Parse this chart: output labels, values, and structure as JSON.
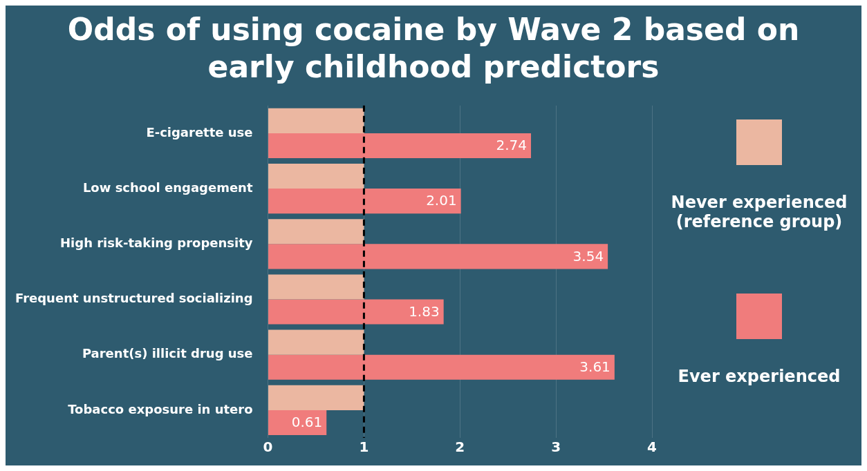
{
  "chart_data": {
    "type": "bar",
    "orientation": "horizontal",
    "title": "Odds of using cocaine by Wave 2 based on early childhood predictors",
    "categories": [
      "E-cigarette use",
      "Low school engagement",
      "High risk-taking propensity",
      "Frequent unstructured socializing",
      "Parent(s) illicit drug use",
      "Tobacco exposure in utero"
    ],
    "series": [
      {
        "name": "Never experienced (reference group)",
        "color": "#ebb7a1",
        "values": [
          1,
          1,
          1,
          1,
          1,
          1
        ]
      },
      {
        "name": "Ever experienced",
        "color": "#f07c7c",
        "values": [
          2.74,
          2.01,
          3.54,
          1.83,
          3.61,
          0.61
        ],
        "value_labels": [
          "2.74",
          "2.01",
          "3.54",
          "1.83",
          "3.61",
          "0.61"
        ]
      }
    ],
    "xlim": [
      0,
      4
    ],
    "xticks": [
      0,
      1,
      2,
      3,
      4
    ],
    "grid": "x",
    "legend": "right",
    "ref_lines": [
      {
        "axis": "x",
        "value": 1,
        "color": "#000000",
        "line_style": "dashed"
      }
    ]
  }
}
